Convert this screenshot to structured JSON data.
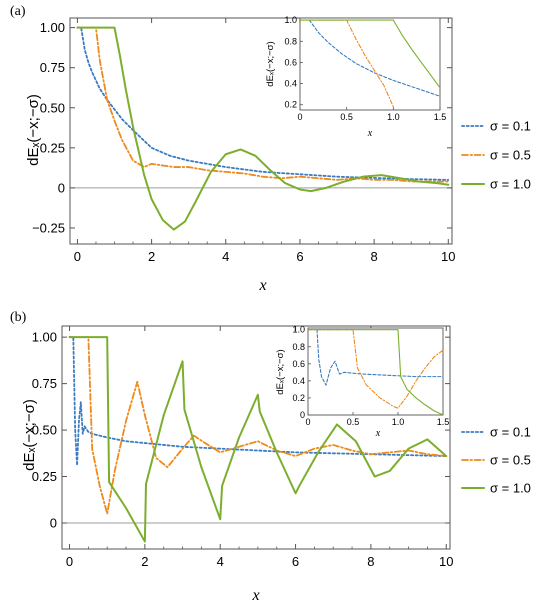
{
  "colors": {
    "sigma_0_1": "#3b7bc0",
    "sigma_0_5": "#ee8a1a",
    "sigma_1_0": "#7cae2e",
    "zero_line": "#9e9e9e",
    "frame": "#555555"
  },
  "chart_data": [
    {
      "panel_label": "(a)",
      "type": "line",
      "xlabel": "x",
      "ylabel": "dEₓ(−x;−σ)",
      "xlim": [
        -0.2,
        10.1
      ],
      "ylim": [
        -0.35,
        1.06
      ],
      "xticks": [
        "0",
        "2",
        "4",
        "6",
        "8",
        "10"
      ],
      "xtick_values": [
        0,
        2,
        4,
        6,
        8,
        10
      ],
      "yticks": [
        "−0.25",
        "0",
        "0.25",
        "0.50",
        "0.75",
        "1.00"
      ],
      "ytick_values": [
        -0.25,
        0,
        0.25,
        0.5,
        0.75,
        1.0
      ],
      "legend_position": "right",
      "legend": [
        "σ = 0.1",
        "σ = 0.5",
        "σ = 1.0"
      ],
      "series": [
        {
          "name": "σ = 0.1",
          "style": "dotted",
          "x": [
            0,
            0.1,
            0.2,
            0.3,
            0.4,
            0.6,
            0.8,
            1.0,
            1.2,
            1.5,
            2.0,
            2.5,
            3.0,
            4.0,
            5.0,
            6.0,
            7.0,
            8.0,
            9.0,
            10.0
          ],
          "y": [
            1.0,
            1.0,
            0.86,
            0.78,
            0.72,
            0.62,
            0.55,
            0.49,
            0.43,
            0.36,
            0.25,
            0.2,
            0.17,
            0.13,
            0.1,
            0.085,
            0.07,
            0.062,
            0.055,
            0.05
          ]
        },
        {
          "name": "σ = 0.5",
          "style": "dashdot",
          "x": [
            0,
            0.5,
            0.6,
            0.8,
            1.0,
            1.2,
            1.5,
            1.8,
            2.0,
            2.3,
            2.6,
            3.0,
            3.5,
            4.0,
            4.5,
            5.0,
            5.5,
            6.0,
            6.5,
            7.0,
            7.5,
            8.0,
            8.5,
            9.0,
            10.0
          ],
          "y": [
            1.0,
            1.0,
            0.8,
            0.55,
            0.42,
            0.3,
            0.17,
            0.13,
            0.15,
            0.14,
            0.13,
            0.13,
            0.11,
            0.1,
            0.09,
            0.07,
            0.06,
            0.07,
            0.06,
            0.05,
            0.06,
            0.05,
            0.05,
            0.04,
            0.04
          ]
        },
        {
          "name": "σ = 1.0",
          "style": "solid",
          "x": [
            0,
            1.0,
            1.15,
            1.3,
            1.5,
            1.8,
            2.0,
            2.3,
            2.6,
            2.9,
            3.2,
            3.6,
            4.0,
            4.4,
            4.8,
            5.2,
            5.6,
            6.0,
            6.3,
            6.7,
            7.2,
            7.7,
            8.2,
            8.7,
            9.2,
            9.7,
            10.0
          ],
          "y": [
            1.0,
            1.0,
            0.82,
            0.62,
            0.38,
            0.08,
            -0.07,
            -0.2,
            -0.26,
            -0.21,
            -0.08,
            0.1,
            0.21,
            0.24,
            0.2,
            0.11,
            0.03,
            -0.01,
            -0.02,
            0.0,
            0.04,
            0.07,
            0.08,
            0.06,
            0.04,
            0.03,
            0.02
          ]
        }
      ],
      "inset": {
        "xlabel": "x",
        "ylabel": "dEₓ(−x;−σ)",
        "xlim": [
          0,
          1.5
        ],
        "ylim": [
          0.15,
          1.02
        ],
        "xticks": [
          "0",
          "0.5",
          "1.0",
          "1.5"
        ],
        "xtick_values": [
          0,
          0.5,
          1.0,
          1.5
        ],
        "yticks": [
          "0.2",
          "0.4",
          "0.6",
          "0.8",
          "1.0"
        ],
        "ytick_values": [
          0.2,
          0.4,
          0.6,
          0.8,
          1.0
        ],
        "series": [
          {
            "name": "σ = 0.1",
            "style": "dashed",
            "x": [
              0.1,
              0.2,
              0.3,
              0.45,
              0.6,
              0.8,
              1.0,
              1.2,
              1.5
            ],
            "y": [
              1.0,
              0.88,
              0.79,
              0.68,
              0.59,
              0.5,
              0.43,
              0.37,
              0.28
            ]
          },
          {
            "name": "σ = 0.5",
            "style": "dashdot",
            "x": [
              0,
              0.5,
              0.6,
              0.7,
              0.8,
              0.9,
              1.0
            ],
            "y": [
              1.0,
              1.0,
              0.82,
              0.66,
              0.52,
              0.38,
              0.18
            ]
          },
          {
            "name": "σ = 1.0",
            "style": "solid",
            "x": [
              0,
              1.0,
              1.1,
              1.2,
              1.3,
              1.4,
              1.5
            ],
            "y": [
              1.0,
              1.0,
              0.85,
              0.72,
              0.6,
              0.48,
              0.36
            ]
          }
        ]
      }
    },
    {
      "panel_label": "(b)",
      "type": "line",
      "xlabel": "x",
      "ylabel": "dEₓ(−x;−σ)",
      "xlim": [
        -0.2,
        10.1
      ],
      "ylim": [
        -0.14,
        1.06
      ],
      "xticks": [
        "0",
        "2",
        "4",
        "6",
        "8",
        "10"
      ],
      "xtick_values": [
        0,
        2,
        4,
        6,
        8,
        10
      ],
      "yticks": [
        "0",
        "0.25",
        "0.50",
        "0.75",
        "1.00"
      ],
      "ytick_values": [
        0,
        0.25,
        0.5,
        0.75,
        1.0
      ],
      "legend_position": "right",
      "legend": [
        "σ = 0.1",
        "σ = 0.5",
        "σ = 1.0"
      ],
      "series": [
        {
          "name": "σ = 0.1",
          "style": "dotted",
          "x": [
            0,
            0.1,
            0.15,
            0.2,
            0.25,
            0.3,
            0.35,
            0.4,
            0.5,
            0.6,
            0.8,
            1.0,
            1.5,
            2.0,
            3.0,
            4.0,
            5.0,
            6.0,
            7.0,
            8.0,
            9.0,
            10.0
          ],
          "y": [
            1.0,
            1.0,
            0.5,
            0.31,
            0.55,
            0.65,
            0.48,
            0.52,
            0.49,
            0.48,
            0.47,
            0.46,
            0.44,
            0.43,
            0.41,
            0.4,
            0.39,
            0.38,
            0.375,
            0.37,
            0.365,
            0.36
          ]
        },
        {
          "name": "σ = 0.5",
          "style": "dashdot",
          "x": [
            0,
            0.5,
            0.6,
            0.8,
            1.0,
            1.2,
            1.5,
            1.8,
            2.0,
            2.3,
            2.6,
            3.0,
            3.3,
            3.6,
            4.0,
            4.5,
            5.0,
            5.5,
            6.0,
            6.5,
            7.0,
            7.5,
            8.0,
            8.5,
            9.0,
            9.5,
            10.0
          ],
          "y": [
            1.0,
            1.0,
            0.4,
            0.2,
            0.05,
            0.28,
            0.55,
            0.76,
            0.58,
            0.35,
            0.3,
            0.4,
            0.47,
            0.43,
            0.38,
            0.41,
            0.44,
            0.39,
            0.36,
            0.4,
            0.42,
            0.39,
            0.37,
            0.38,
            0.39,
            0.37,
            0.36
          ]
        },
        {
          "name": "σ = 1.0",
          "style": "solid",
          "x": [
            0,
            1.0,
            1.05,
            1.5,
            2.0,
            2.03,
            2.5,
            3.0,
            3.05,
            3.5,
            4.0,
            4.05,
            4.5,
            5.0,
            5.05,
            5.5,
            6.0,
            6.1,
            6.6,
            7.1,
            7.6,
            8.1,
            8.5,
            9.0,
            9.5,
            10.0
          ],
          "y": [
            1.0,
            1.0,
            0.22,
            0.08,
            -0.1,
            0.21,
            0.58,
            0.87,
            0.61,
            0.3,
            0.02,
            0.2,
            0.46,
            0.69,
            0.6,
            0.38,
            0.16,
            0.2,
            0.38,
            0.53,
            0.44,
            0.25,
            0.28,
            0.4,
            0.45,
            0.36
          ]
        }
      ],
      "inset": {
        "xlabel": "x",
        "ylabel": "dEₓ(−x;−σ)",
        "xlim": [
          0,
          1.5
        ],
        "ylim": [
          0,
          1.02
        ],
        "xticks": [
          "0",
          "0.5",
          "1.0",
          "1.5"
        ],
        "xtick_values": [
          0,
          0.5,
          1.0,
          1.5
        ],
        "yticks": [
          "0",
          "0.2",
          "0.4",
          "0.6",
          "0.8",
          "1.0"
        ],
        "ytick_values": [
          0,
          0.2,
          0.4,
          0.6,
          0.8,
          1.0
        ],
        "series": [
          {
            "name": "σ = 0.1",
            "style": "dashed",
            "x": [
              0.1,
              0.12,
              0.15,
              0.2,
              0.25,
              0.3,
              0.35,
              0.4,
              0.5,
              0.6,
              0.8,
              1.0,
              1.2,
              1.5
            ],
            "y": [
              1.0,
              0.65,
              0.45,
              0.35,
              0.55,
              0.63,
              0.48,
              0.5,
              0.49,
              0.48,
              0.47,
              0.46,
              0.45,
              0.45
            ]
          },
          {
            "name": "σ = 0.5",
            "style": "dashdot",
            "x": [
              0,
              0.5,
              0.55,
              0.65,
              0.8,
              0.95,
              1.0,
              1.1,
              1.2,
              1.3,
              1.4,
              1.5
            ],
            "y": [
              1.0,
              1.0,
              0.55,
              0.35,
              0.2,
              0.1,
              0.08,
              0.22,
              0.4,
              0.55,
              0.68,
              0.76
            ]
          },
          {
            "name": "σ = 1.0",
            "style": "solid",
            "x": [
              0,
              1.0,
              1.03,
              1.1,
              1.2,
              1.3,
              1.4,
              1.5
            ],
            "y": [
              1.0,
              1.0,
              0.45,
              0.3,
              0.2,
              0.12,
              0.05,
              0.0
            ]
          }
        ]
      }
    }
  ]
}
